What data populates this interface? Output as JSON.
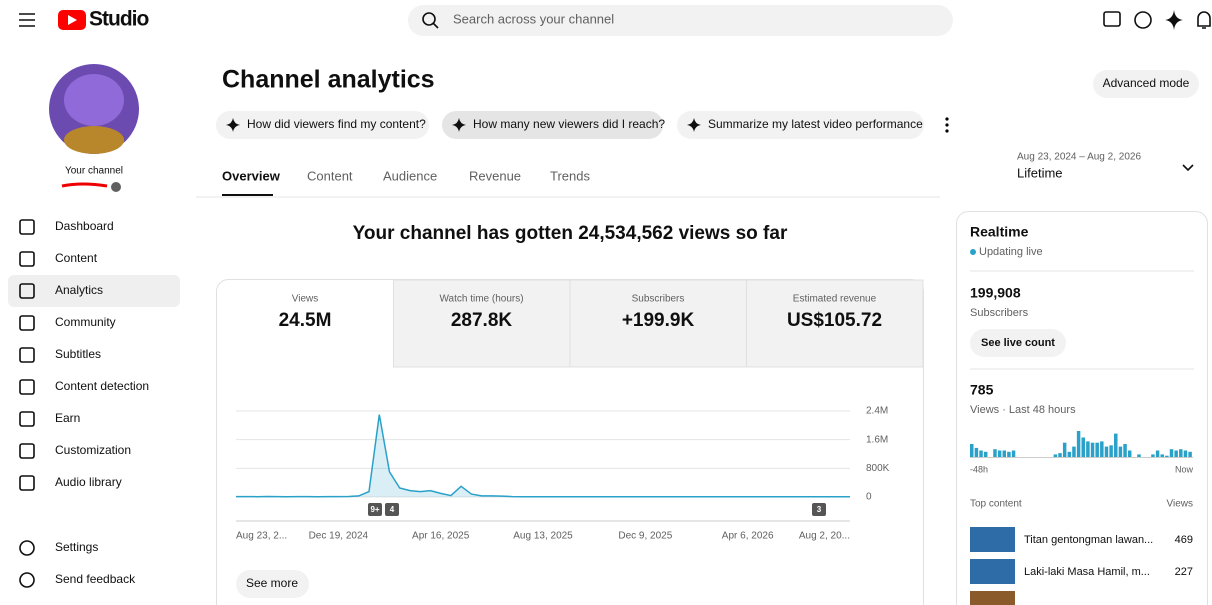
{
  "header": {
    "logo": "Studio",
    "search_placeholder": "Search across your channel"
  },
  "sidebar": {
    "channel_label": "Your channel",
    "nav": [
      "Dashboard",
      "Content",
      "Analytics",
      "Community",
      "Subtitles",
      "Content detection",
      "Earn",
      "Customization",
      "Audio library"
    ],
    "footer_nav": [
      "Settings",
      "Send feedback"
    ]
  },
  "main": {
    "title": "Channel analytics",
    "advanced_mode": "Advanced mode",
    "prompts": [
      "How did viewers find my content?",
      "How many new viewers did I reach?",
      "Summarize my latest video performance"
    ],
    "tabs": [
      "Overview",
      "Content",
      "Audience",
      "Revenue",
      "Trends"
    ],
    "date_range": "Aug 23, 2024 – Aug 2, 2026",
    "period": "Lifetime",
    "headline": "Your channel has gotten 24,534,562 views so far",
    "metrics": [
      {
        "label": "Views",
        "value": "24.5M"
      },
      {
        "label": "Watch time (hours)",
        "value": "287.8K"
      },
      {
        "label": "Subscribers",
        "value": "+199.9K"
      },
      {
        "label": "Estimated revenue",
        "value": "US$105.72"
      }
    ],
    "see_more": "See more"
  },
  "realtime": {
    "title": "Realtime",
    "status": "Updating live",
    "subscribers": "199,908",
    "subscribers_label": "Subscribers",
    "live_count_button": "See live count",
    "views": "785",
    "views_label": "Views · Last 48 hours",
    "top_content_label": "Top content",
    "top_content_views_label": "Views",
    "top_content": [
      {
        "title": "Titan gentongman lawan...",
        "views": "469"
      },
      {
        "title": "Laki-laki Masa Hamil, m...",
        "views": "227"
      }
    ]
  },
  "chart_data": [
    {
      "type": "line",
      "color": "#2aa1c9",
      "categories": [
        "Aug 23, 2...",
        null,
        null,
        null,
        null,
        null,
        null,
        null,
        null,
        null,
        "Dec 19, 2024",
        null,
        null,
        null,
        null,
        null,
        null,
        null,
        null,
        null,
        "Apr 16, 2025",
        null,
        null,
        null,
        null,
        null,
        null,
        null,
        null,
        null,
        "Aug 13, 2025",
        null,
        null,
        null,
        null,
        null,
        null,
        null,
        null,
        null,
        "Dec 9, 2025",
        null,
        null,
        null,
        null,
        null,
        null,
        null,
        null,
        null,
        "Apr 6, 2026",
        null,
        null,
        null,
        null,
        null,
        null,
        null,
        null,
        null,
        "Aug 2, 20..."
      ],
      "values": [
        10000,
        12000,
        8000,
        15000,
        10000,
        8000,
        10000,
        12000,
        9000,
        10000,
        12000,
        15000,
        30000,
        150000,
        2300000,
        700000,
        250000,
        180000,
        150000,
        180000,
        100000,
        40000,
        300000,
        80000,
        30000,
        30000,
        25000,
        10000,
        8000,
        6000,
        5000,
        5000,
        5000,
        5000,
        5000,
        5000,
        5000,
        5000,
        5000,
        5000,
        5000,
        5000,
        5000,
        5000,
        5000,
        5000,
        5000,
        5000,
        5000,
        5000,
        5000,
        5000,
        5000,
        5000,
        5000,
        5000,
        5000,
        5000,
        5000,
        5000,
        5000
      ],
      "ylim": [
        0,
        2400000
      ],
      "yticks": [
        {
          "value": 0,
          "label": "0"
        },
        {
          "value": 800000,
          "label": "800K"
        },
        {
          "value": 1600000,
          "label": "1.6M"
        },
        {
          "value": 2400000,
          "label": "2.4M"
        }
      ],
      "grid": true,
      "annotations": [
        "9+",
        "4",
        "3"
      ]
    },
    {
      "type": "bar",
      "color": "#2aa1c9",
      "x_labels": [
        "-48h",
        "Now"
      ],
      "values": [
        20,
        14,
        10,
        8,
        0,
        12,
        10,
        10,
        8,
        10,
        0,
        0,
        0,
        0,
        0,
        0,
        0,
        0,
        4,
        6,
        22,
        8,
        16,
        40,
        30,
        24,
        22,
        22,
        24,
        16,
        18,
        36,
        16,
        20,
        10,
        0,
        4,
        0,
        0,
        4,
        10,
        4,
        2,
        12,
        10,
        12,
        10,
        8
      ]
    }
  ]
}
